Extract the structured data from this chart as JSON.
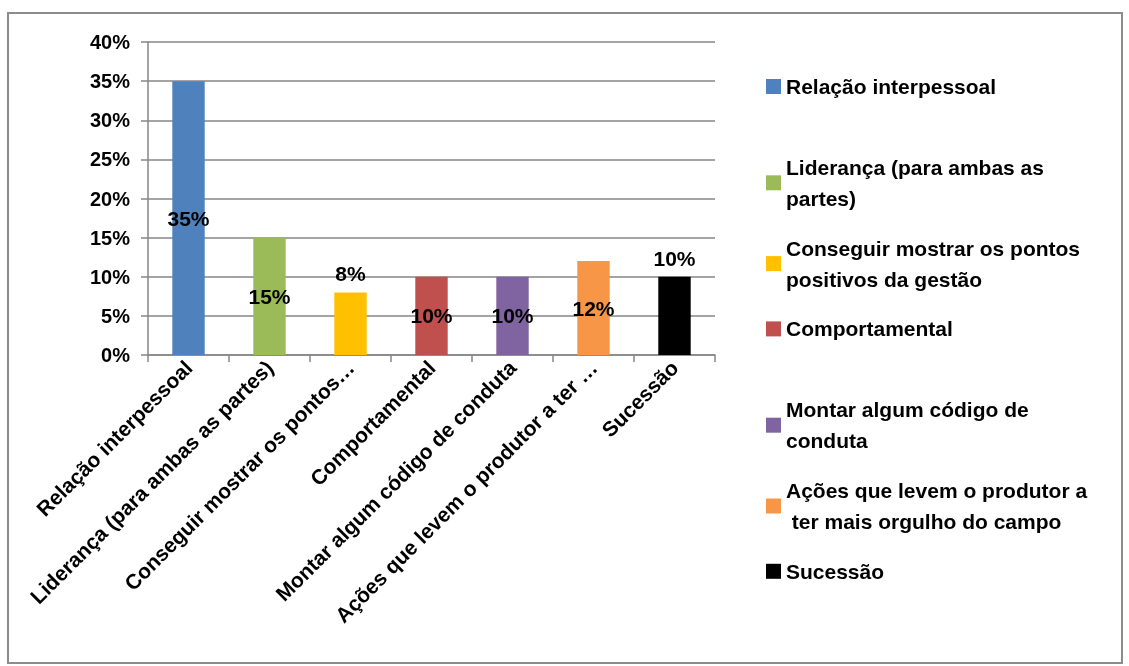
{
  "chart_data": {
    "type": "bar",
    "categories": [
      "Relação interpessoal",
      "Liderança (para ambas as partes)",
      "Conseguir mostrar os pontos…",
      "Comportamental",
      "Montar algum código de conduta",
      "Ações que levem o produtor a ter …",
      "Sucessão"
    ],
    "series": [
      {
        "name": "Relação interpessoal",
        "color": "#4f81bd",
        "values": [
          35,
          null,
          null,
          null,
          null,
          null,
          null
        ],
        "value_labels": [
          "35%",
          null,
          null,
          null,
          null,
          null,
          null
        ]
      },
      {
        "name": "Liderança (para ambas as partes)",
        "color": "#9bbb59",
        "values": [
          null,
          15,
          null,
          null,
          null,
          null,
          null
        ],
        "value_labels": [
          null,
          "15%",
          null,
          null,
          null,
          null,
          null
        ]
      },
      {
        "name": "Conseguir mostrar os pontos positivos da gestão",
        "color": "#ffc000",
        "values": [
          null,
          null,
          8,
          null,
          null,
          null,
          null
        ],
        "value_labels": [
          null,
          null,
          "8%",
          null,
          null,
          null,
          null
        ]
      },
      {
        "name": "Comportamental",
        "color": "#c0504d",
        "values": [
          null,
          null,
          null,
          10,
          null,
          null,
          null
        ],
        "value_labels": [
          null,
          null,
          null,
          "10%",
          null,
          null,
          null
        ]
      },
      {
        "name": "Montar algum código de conduta",
        "color": "#8064a2",
        "values": [
          null,
          null,
          null,
          null,
          10,
          null,
          null
        ],
        "value_labels": [
          null,
          null,
          null,
          null,
          "10%",
          null,
          null
        ]
      },
      {
        "name": "Ações que levem o produtor a ter mais orgulho do campo",
        "color": "#f79646",
        "values": [
          null,
          null,
          null,
          null,
          null,
          12,
          null
        ],
        "value_labels": [
          null,
          null,
          null,
          null,
          null,
          "12%",
          null
        ]
      },
      {
        "name": "Sucessão",
        "color": "#000000",
        "values": [
          null,
          null,
          null,
          null,
          null,
          null,
          10
        ],
        "value_labels": [
          null,
          null,
          null,
          null,
          null,
          null,
          "10%"
        ]
      }
    ],
    "ylim": [
      0,
      40
    ],
    "yticks": [
      {
        "value": 0,
        "label": "0%"
      },
      {
        "value": 5,
        "label": "5%"
      },
      {
        "value": 10,
        "label": "10%"
      },
      {
        "value": 15,
        "label": "15%"
      },
      {
        "value": 20,
        "label": "20%"
      },
      {
        "value": 25,
        "label": "25%"
      },
      {
        "value": 30,
        "label": "30%"
      },
      {
        "value": 35,
        "label": "35%"
      },
      {
        "value": 40,
        "label": "40%"
      }
    ],
    "grid": "y",
    "legend": "right"
  }
}
